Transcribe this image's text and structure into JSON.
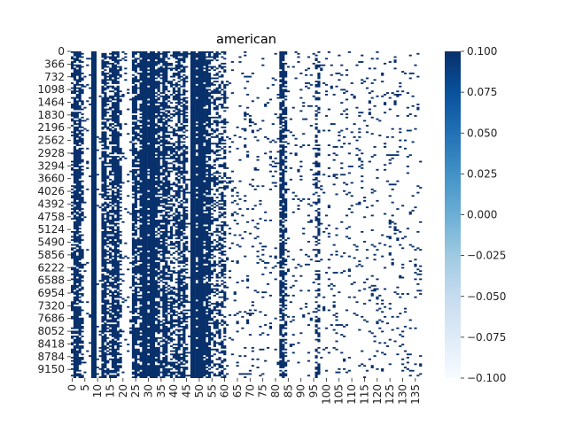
{
  "chart_data": {
    "type": "heatmap",
    "title": "american",
    "xlabel": "",
    "ylabel": "",
    "n_rows": 9400,
    "n_cols": 138,
    "x_ticks": [
      "0",
      "5",
      "10",
      "15",
      "20",
      "25",
      "30",
      "35",
      "40",
      "45",
      "50",
      "55",
      "60",
      "65",
      "70",
      "75",
      "80",
      "85",
      "90",
      "95",
      "100",
      "105",
      "110",
      "115",
      "120",
      "125",
      "130",
      "135"
    ],
    "y_ticks": [
      "0",
      "366",
      "732",
      "1098",
      "1464",
      "1830",
      "2196",
      "2562",
      "2928",
      "3294",
      "3660",
      "4026",
      "4392",
      "4758",
      "5124",
      "5490",
      "5856",
      "6222",
      "6588",
      "6954",
      "7320",
      "7686",
      "8052",
      "8418",
      "8784",
      "9150"
    ],
    "colorbar": {
      "min": -0.1,
      "max": 0.1,
      "ticks": [
        "0.100",
        "0.075",
        "0.050",
        "0.025",
        "0.000",
        "−0.025",
        "−0.050",
        "−0.075",
        "−0.100"
      ],
      "colormap": "Blues",
      "color_low": "#f7fbff",
      "color_high": "#08306b"
    },
    "solid_columns": [
      8,
      9,
      28,
      29,
      31,
      32,
      47,
      48,
      50,
      51
    ],
    "dense_columns": [
      1,
      2,
      3,
      12,
      13,
      16,
      17,
      18,
      24,
      25,
      27,
      30,
      33,
      34,
      36,
      37,
      42,
      44,
      49,
      52,
      53,
      54,
      82,
      83
    ],
    "medium_columns": [
      0,
      4,
      14,
      15,
      19,
      26,
      35,
      38,
      39,
      40,
      41,
      43,
      45,
      55,
      56,
      57,
      58,
      59,
      60,
      84,
      96,
      97
    ],
    "sparse_columns": [
      5,
      6,
      7,
      10,
      11,
      20,
      21,
      22,
      23,
      46,
      61,
      62,
      63,
      64,
      65,
      66,
      67,
      68,
      69,
      70,
      71,
      72,
      73,
      74,
      75,
      76,
      77,
      78,
      79,
      80,
      81,
      85,
      86,
      87,
      88,
      89,
      90,
      91,
      92,
      93,
      94,
      95,
      98,
      99,
      100,
      101,
      102,
      103,
      104,
      105,
      106,
      107,
      108,
      109,
      110,
      111,
      112,
      113,
      114,
      115,
      116,
      117,
      118,
      119,
      120,
      121,
      122,
      123,
      124,
      125,
      126,
      127,
      128,
      129,
      130,
      131,
      132,
      133,
      134,
      135,
      136,
      137
    ]
  }
}
